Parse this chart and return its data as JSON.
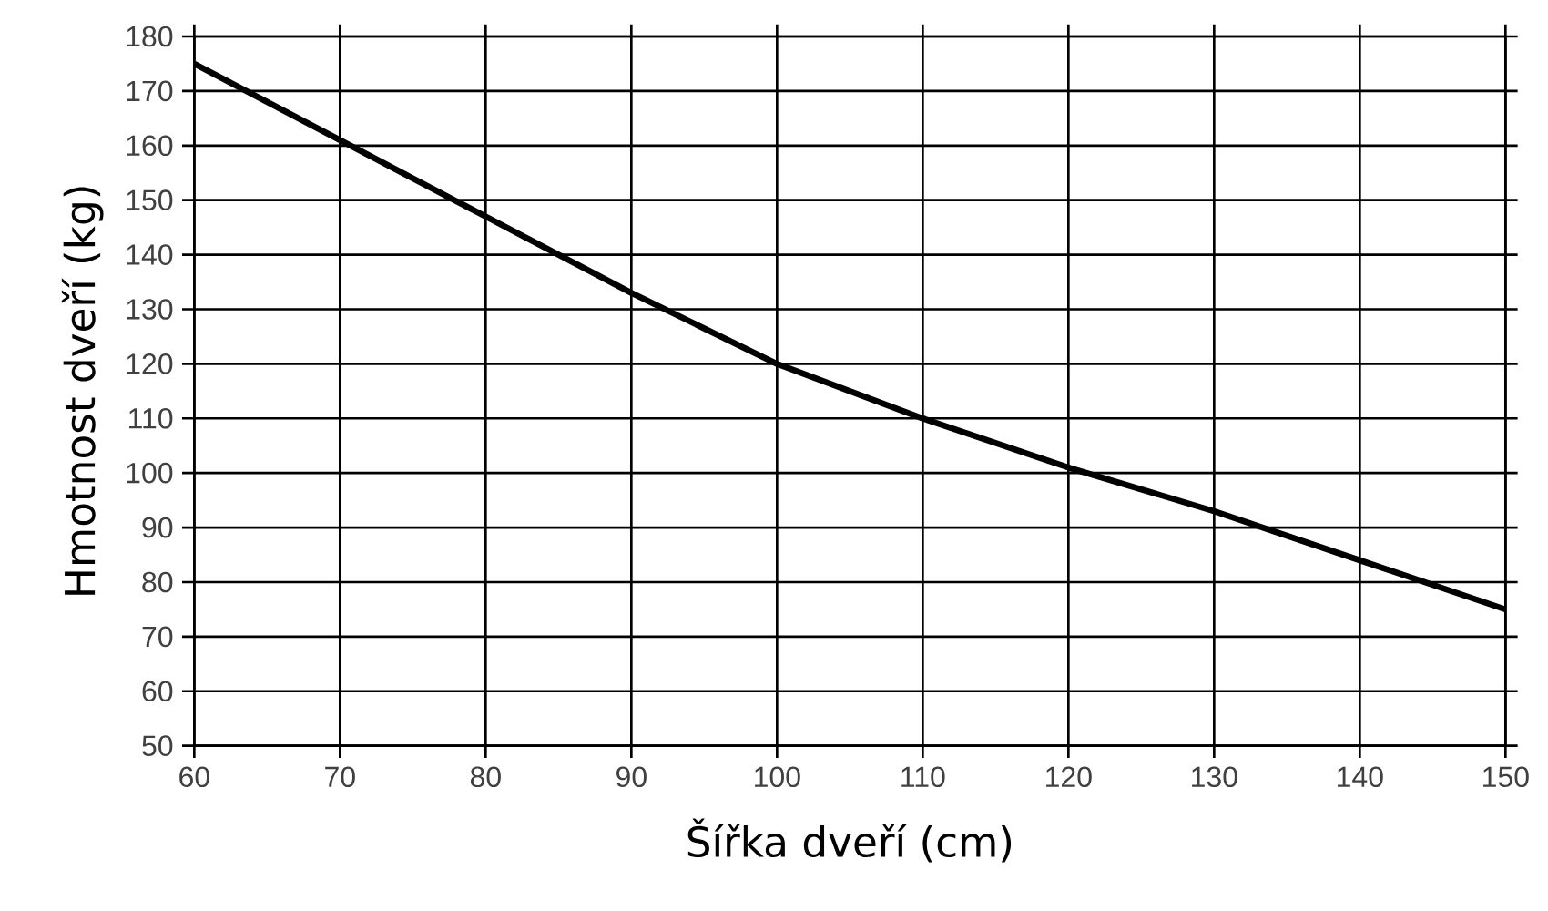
{
  "chart_data": {
    "type": "line",
    "xlabel": "Šířka dveří (cm)",
    "ylabel": "Hmotnost dveří  (kg)",
    "x": [
      60,
      70,
      80,
      90,
      100,
      110,
      120,
      130,
      140,
      150
    ],
    "series": [
      {
        "color": "#000000",
        "values": [
          175,
          161,
          147,
          133,
          120,
          110,
          101,
          93,
          84,
          75
        ]
      }
    ],
    "xlim": [
      60,
      150
    ],
    "ylim": [
      50,
      180
    ],
    "xticks": [
      60,
      70,
      80,
      90,
      100,
      110,
      120,
      130,
      140,
      150
    ],
    "yticks": [
      50,
      60,
      70,
      80,
      90,
      100,
      110,
      120,
      130,
      140,
      150,
      160,
      170,
      180
    ],
    "grid": true,
    "marker": "none",
    "line_style": "solid"
  }
}
